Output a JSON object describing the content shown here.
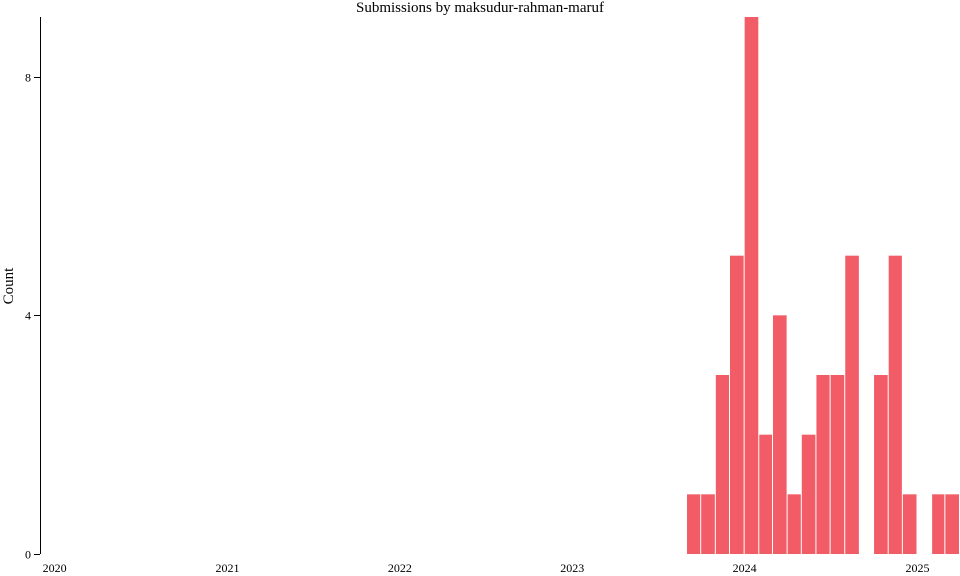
{
  "chart_data": {
    "type": "bar",
    "title": "Submissions by maksudur-rahman-maruf",
    "xlabel": "",
    "ylabel": "Count",
    "bar_color": "#f25c66",
    "background": "#ffffff",
    "grid": false,
    "x_ticks": [
      "2020",
      "2021",
      "2022",
      "2023",
      "2024",
      "2025"
    ],
    "y_ticks": [
      0,
      4,
      8
    ],
    "ylim": [
      0,
      9
    ],
    "xlim": [
      "2019-12-01",
      "2025-04-01"
    ],
    "bins": [
      {
        "start": "2023-09-01",
        "end": "2023-10-01",
        "value": 1
      },
      {
        "start": "2023-10-01",
        "end": "2023-11-01",
        "value": 1
      },
      {
        "start": "2023-11-01",
        "end": "2023-12-01",
        "value": 3
      },
      {
        "start": "2023-12-01",
        "end": "2024-01-01",
        "value": 5
      },
      {
        "start": "2024-01-01",
        "end": "2024-02-01",
        "value": 9
      },
      {
        "start": "2024-02-01",
        "end": "2024-03-01",
        "value": 2
      },
      {
        "start": "2024-03-01",
        "end": "2024-04-01",
        "value": 4
      },
      {
        "start": "2024-04-01",
        "end": "2024-05-01",
        "value": 1
      },
      {
        "start": "2024-05-01",
        "end": "2024-06-01",
        "value": 2
      },
      {
        "start": "2024-06-01",
        "end": "2024-07-01",
        "value": 3
      },
      {
        "start": "2024-07-01",
        "end": "2024-08-01",
        "value": 3
      },
      {
        "start": "2024-08-01",
        "end": "2024-09-01",
        "value": 5
      },
      {
        "start": "2024-09-01",
        "end": "2024-10-01",
        "value": 0
      },
      {
        "start": "2024-10-01",
        "end": "2024-11-01",
        "value": 3
      },
      {
        "start": "2024-11-01",
        "end": "2024-12-01",
        "value": 5
      },
      {
        "start": "2024-12-01",
        "end": "2025-01-01",
        "value": 1
      },
      {
        "start": "2025-01-01",
        "end": "2025-02-01",
        "value": 0
      },
      {
        "start": "2025-02-01",
        "end": "2025-03-01",
        "value": 1
      },
      {
        "start": "2025-03-01",
        "end": "2025-04-01",
        "value": 1
      }
    ]
  }
}
